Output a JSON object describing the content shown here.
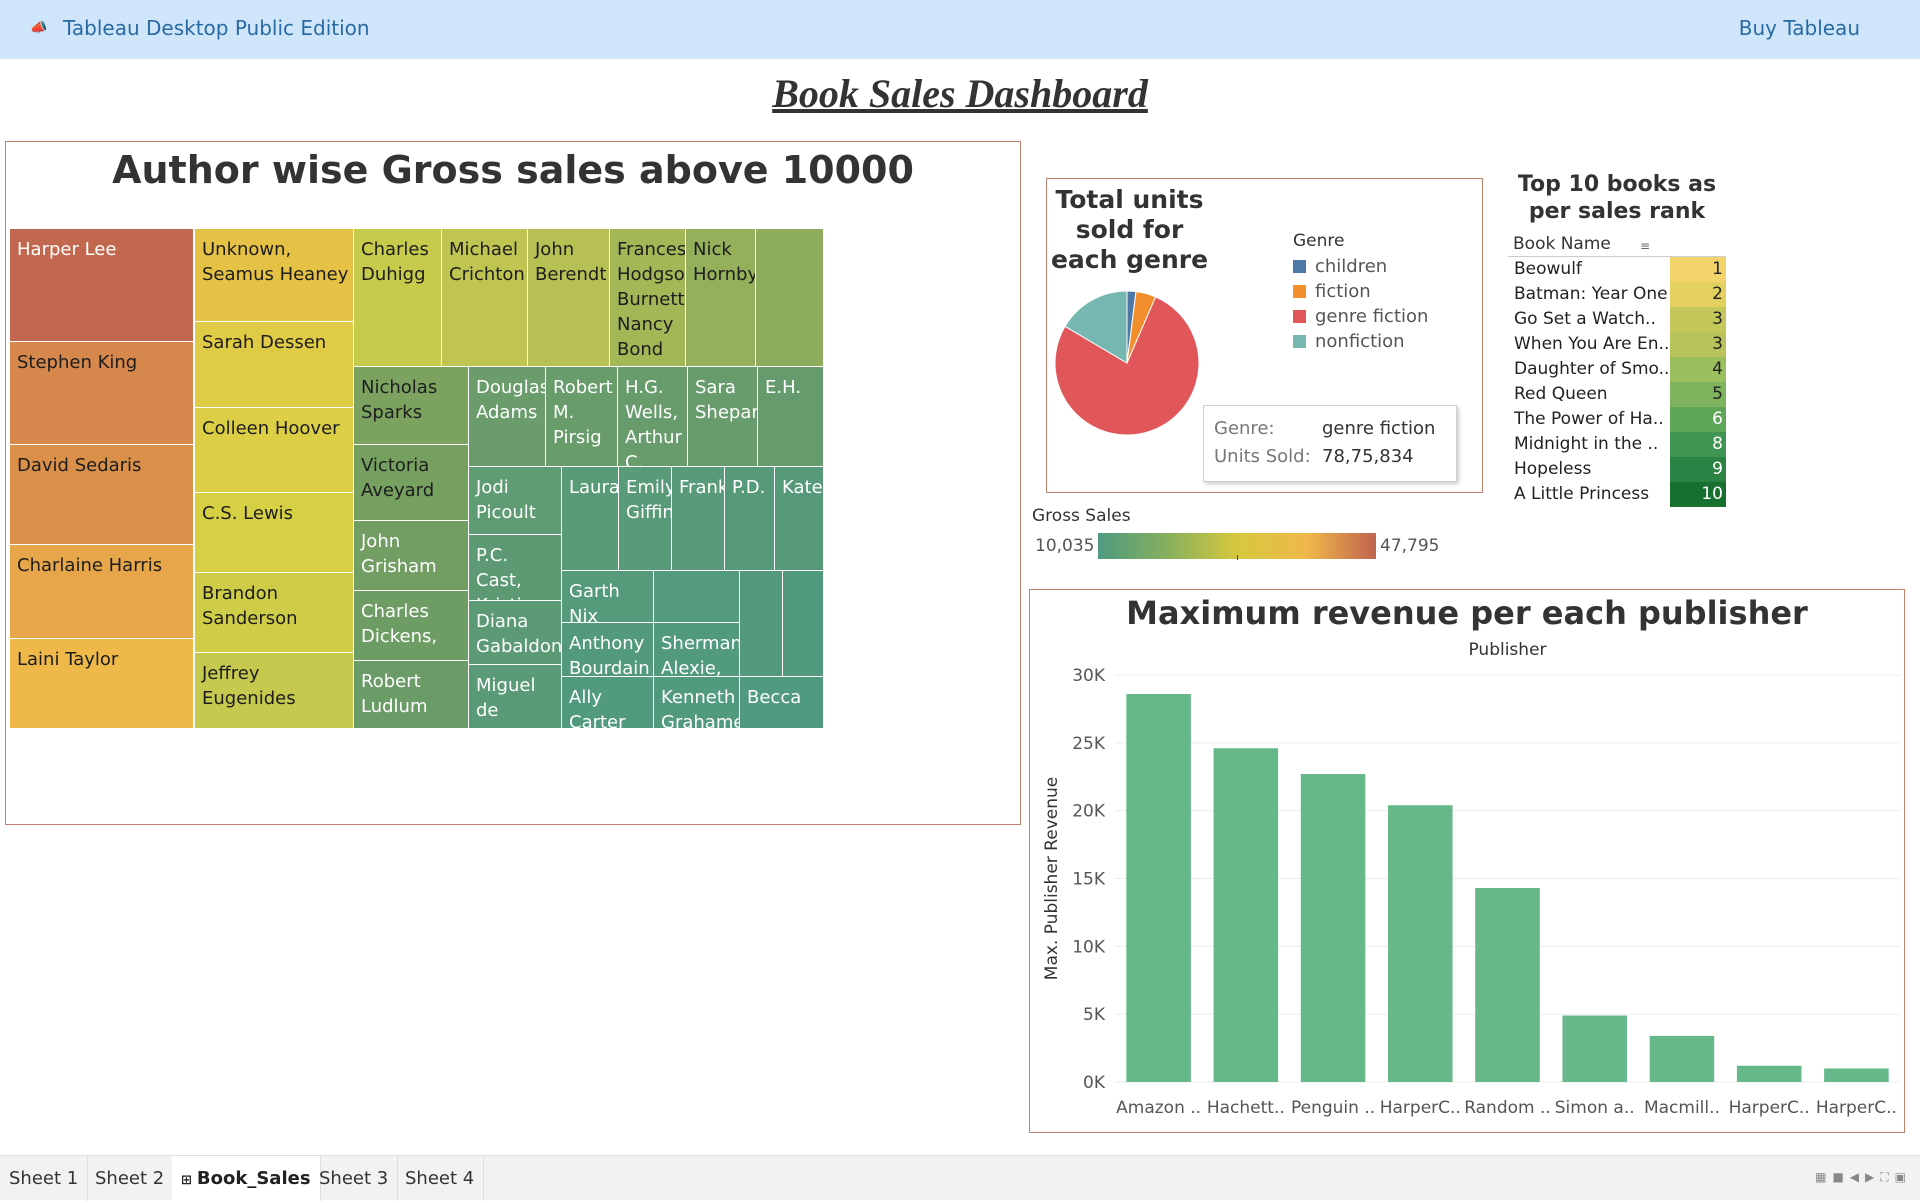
{
  "topbar": {
    "app_title": "Tableau Desktop Public Edition",
    "buy_label": "Buy Tableau"
  },
  "dashboard_title": "Book Sales Dashboard",
  "treemap": {
    "title": "Author wise Gross sales above 10000",
    "tiles": [
      {
        "label": "Harper Lee",
        "color": "#c1684f",
        "text": "#ffffff"
      },
      {
        "label": "Stephen King",
        "color": "#d6884c",
        "text": "#1d1d1d"
      },
      {
        "label": "David Sedaris",
        "color": "#db904a",
        "text": "#1d1d1d"
      },
      {
        "label": "Charlaine Harris",
        "color": "#e7a64a",
        "text": "#1d1d1d"
      },
      {
        "label": "Laini Taylor",
        "color": "#efb94a",
        "text": "#1d1d1d"
      },
      {
        "label": "Unknown, Seamus Heaney",
        "color": "#e5c146",
        "text": "#1d1d1d"
      },
      {
        "label": "Sarah Dessen",
        "color": "#dfcb45",
        "text": "#1d1d1d"
      },
      {
        "label": "Colleen Hoover",
        "color": "#dccf45",
        "text": "#1d1d1d"
      },
      {
        "label": "C.S. Lewis",
        "color": "#d6d045",
        "text": "#1d1d1d"
      },
      {
        "label": "Brandon Sanderson",
        "color": "#cfcd48",
        "text": "#1d1d1d"
      },
      {
        "label": "Jeffrey Eugenides",
        "color": "#c5c94e",
        "text": "#1d1d1d"
      },
      {
        "label": "Charles Duhigg",
        "color": "#c7cb4c",
        "text": "#1d1d1d"
      },
      {
        "label": "Michael Crichton",
        "color": "#bfc550",
        "text": "#1d1d1d"
      },
      {
        "label": "John Berendt",
        "color": "#b7c153",
        "text": "#1d1d1d"
      },
      {
        "label": "Frances Hodgson Burnett, Nancy Bond",
        "color": "#a3b757",
        "text": "#1d1d1d"
      },
      {
        "label": "Nick Hornby",
        "color": "#95b05a",
        "text": "#1d1d1d"
      },
      {
        "label": "",
        "color": "#8ead5c",
        "text": "#1d1d1d"
      },
      {
        "label": "Nicholas Sparks",
        "color": "#7ba35f",
        "text": "#1d1d1d"
      },
      {
        "label": "Victoria Aveyard",
        "color": "#76a060",
        "text": "#1d1d1d"
      },
      {
        "label": "John Grisham",
        "color": "#729e63",
        "text": "#ffffff"
      },
      {
        "label": "Charles Dickens,",
        "color": "#6e9c65",
        "text": "#ffffff"
      },
      {
        "label": "Robert Ludlum",
        "color": "#6b9b66",
        "text": "#ffffff"
      },
      {
        "label": "Douglas Adams",
        "color": "#6a9d6b",
        "text": "#ffffff"
      },
      {
        "label": "Robert M. Pirsig",
        "color": "#699c6b",
        "text": "#ffffff"
      },
      {
        "label": "H.G. Wells, Arthur C.",
        "color": "#699c6c",
        "text": "#ffffff"
      },
      {
        "label": "Sara Shepard",
        "color": "#689c6d",
        "text": "#ffffff"
      },
      {
        "label": "E.H.",
        "color": "#669b6e",
        "text": "#ffffff"
      },
      {
        "label": "Jodi Picoult",
        "color": "#5f9b73",
        "text": "#ffffff"
      },
      {
        "label": "P.C. Cast, Kristin",
        "color": "#5d9a74",
        "text": "#ffffff"
      },
      {
        "label": "Diana Gabaldon",
        "color": "#5b9a75",
        "text": "#ffffff"
      },
      {
        "label": "Miguel de Cervantes",
        "color": "#5a9a76",
        "text": "#ffffff"
      },
      {
        "label": "Laura",
        "color": "#599a77",
        "text": "#ffffff"
      },
      {
        "label": "Emily Giffin",
        "color": "#599a78",
        "text": "#ffffff"
      },
      {
        "label": "Frank",
        "color": "#589a79",
        "text": "#ffffff"
      },
      {
        "label": "P.D.",
        "color": "#579a79",
        "text": "#ffffff"
      },
      {
        "label": "Kate",
        "color": "#569a7a",
        "text": "#ffffff"
      },
      {
        "label": "Garth Nix",
        "color": "#559a7b",
        "text": "#ffffff"
      },
      {
        "label": "",
        "color": "#549a7c",
        "text": "#ffffff"
      },
      {
        "label": "",
        "color": "#539a7d",
        "text": "#ffffff"
      },
      {
        "label": "",
        "color": "#529a7e",
        "text": "#ffffff"
      },
      {
        "label": "Anthony Bourdain",
        "color": "#539a7c",
        "text": "#ffffff"
      },
      {
        "label": "Sherman Alexie,",
        "color": "#529a7d",
        "text": "#ffffff"
      },
      {
        "label": "Ally Carter",
        "color": "#529a7d",
        "text": "#ffffff"
      },
      {
        "label": "Kenneth Grahame,",
        "color": "#519a7e",
        "text": "#ffffff"
      },
      {
        "label": "Becca",
        "color": "#509a7f",
        "text": "#ffffff"
      }
    ]
  },
  "pie": {
    "title": "Total units sold for each genre",
    "legend_title": "Genre",
    "genres": [
      {
        "name": "children",
        "color": "#4e79a7",
        "share": 0.02
      },
      {
        "name": "fiction",
        "color": "#f28e2b",
        "share": 0.045
      },
      {
        "name": "genre fiction",
        "color": "#e15759",
        "share": 0.77
      },
      {
        "name": "nonfiction",
        "color": "#76b7b2",
        "share": 0.165
      }
    ],
    "tooltip": {
      "genre_key": "Genre:",
      "genre_val": "genre fiction",
      "units_key": "Units Sold:",
      "units_val": "78,75,834"
    }
  },
  "gross_legend": {
    "title": "Gross Sales",
    "min": "10,035",
    "max": "47,795"
  },
  "top10": {
    "title": "Top 10 books as per sales rank",
    "header": "Book Name",
    "sort_icon": "sort-icon",
    "rows": [
      {
        "name": "Beowulf",
        "rank": "1",
        "color": "#f3d46b",
        "text": "#222"
      },
      {
        "name": "Batman: Year One",
        "rank": "2",
        "color": "#e4cf61",
        "text": "#222"
      },
      {
        "name": "Go Set a Watch..",
        "rank": "3",
        "color": "#c4c85b",
        "text": "#222"
      },
      {
        "name": "When You Are En..",
        "rank": "3",
        "color": "#b8c35a",
        "text": "#222"
      },
      {
        "name": "Daughter of Smo..",
        "rank": "4",
        "color": "#9bbe5e",
        "text": "#222"
      },
      {
        "name": "Red Queen",
        "rank": "5",
        "color": "#7db45d",
        "text": "#222"
      },
      {
        "name": "The Power of Ha..",
        "rank": "6",
        "color": "#5fa659",
        "text": "#ffffff"
      },
      {
        "name": "Midnight in the ..",
        "rank": "8",
        "color": "#3f9652",
        "text": "#ffffff"
      },
      {
        "name": "Hopeless",
        "rank": "9",
        "color": "#2b8446",
        "text": "#ffffff"
      },
      {
        "name": "A Little Princess",
        "rank": "10",
        "color": "#17702f",
        "text": "#ffffff"
      }
    ]
  },
  "bar_panel": {
    "title": "Maximum revenue per each publisher"
  },
  "chart_data": {
    "type": "bar",
    "title": "Maximum revenue per each publisher",
    "xlabel": "Publisher",
    "ylabel": "Max. Publisher Revenue",
    "categories": [
      "Amazon ..",
      "Hachett..",
      "Penguin ..",
      "HarperC..",
      "Random ..",
      "Simon a..",
      "Macmill..",
      "HarperC..",
      "HarperC.."
    ],
    "values": [
      28600,
      24600,
      22700,
      20400,
      14300,
      4900,
      3400,
      1200,
      1000
    ],
    "ylim": [
      0,
      30000
    ],
    "yticks": [
      0,
      5000,
      10000,
      15000,
      20000,
      25000,
      30000
    ],
    "ytick_labels": [
      "0K",
      "5K",
      "10K",
      "15K",
      "20K",
      "25K",
      "30K"
    ],
    "color": "#66b88a",
    "grid": true
  },
  "tabs": [
    {
      "label": "Sheet 1",
      "active": false
    },
    {
      "label": "Sheet 2",
      "active": false
    },
    {
      "label": "Book_Sales",
      "active": true
    },
    {
      "label": "Sheet 3",
      "active": false
    },
    {
      "label": "Sheet 4",
      "active": false
    }
  ]
}
